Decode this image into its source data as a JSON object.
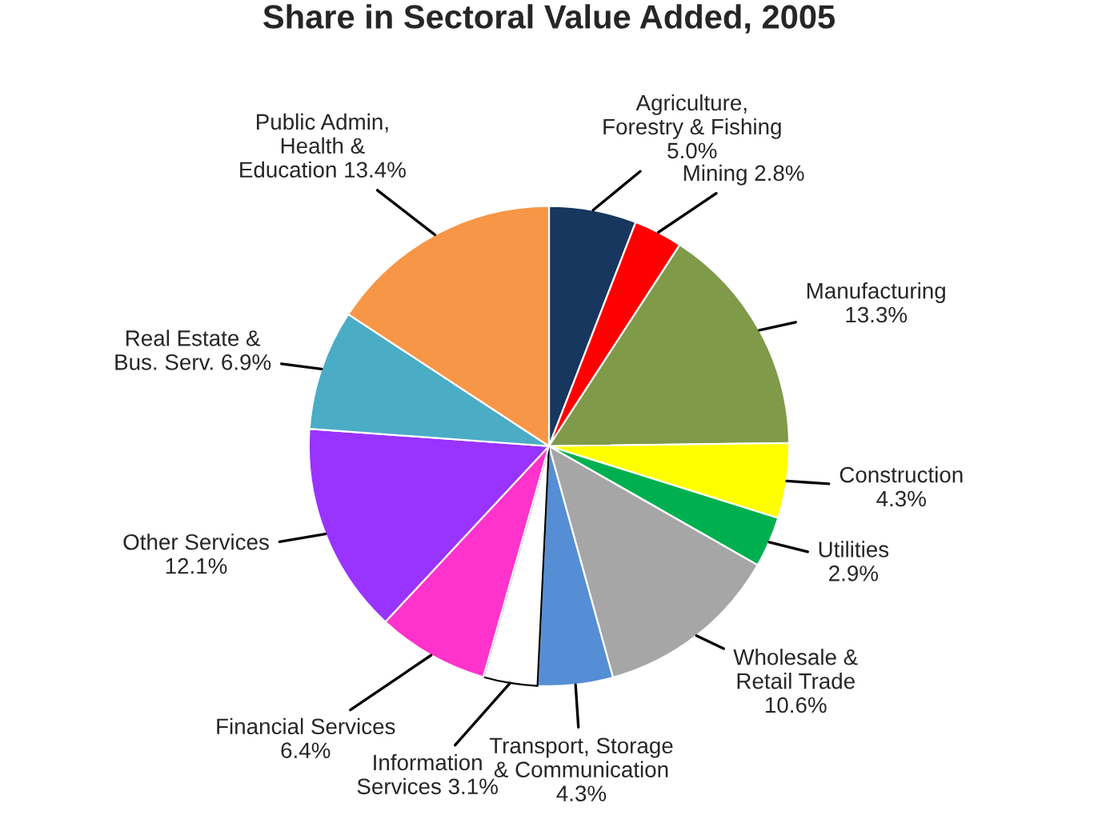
{
  "chart_data": {
    "type": "pie",
    "title": "Share in Sectoral Value Added, 2005",
    "categories": [
      "Agriculture,\nForestry & Fishing",
      "Mining",
      "Manufacturing",
      "Construction",
      "Utilities",
      "Wholesale &\nRetail Trade",
      "Transport, Storage\n& Communication",
      "Information\nServices",
      "Financial Services",
      "Other Services",
      "Real Estate &\nBus. Serv.",
      "Public Admin,\nHealth &\nEducation"
    ],
    "values": [
      5.0,
      2.8,
      13.3,
      4.3,
      2.9,
      10.6,
      4.3,
      3.1,
      6.4,
      12.1,
      6.9,
      13.4
    ],
    "value_labels": [
      "5.0%",
      "2.8%",
      "13.3%",
      "4.3%",
      "2.9%",
      "10.6%",
      "4.3%",
      "3.1%",
      "6.4%",
      "12.1%",
      "6.9%",
      "13.4%"
    ],
    "colors": [
      "#17375e",
      "#ff0000",
      "#7f9a48",
      "#ffff00",
      "#00b050",
      "#a6a6a6",
      "#558ed5",
      "#ffffff",
      "#ff33cc",
      "#9933ff",
      "#4bacc6",
      "#f79646"
    ],
    "legend": false
  }
}
